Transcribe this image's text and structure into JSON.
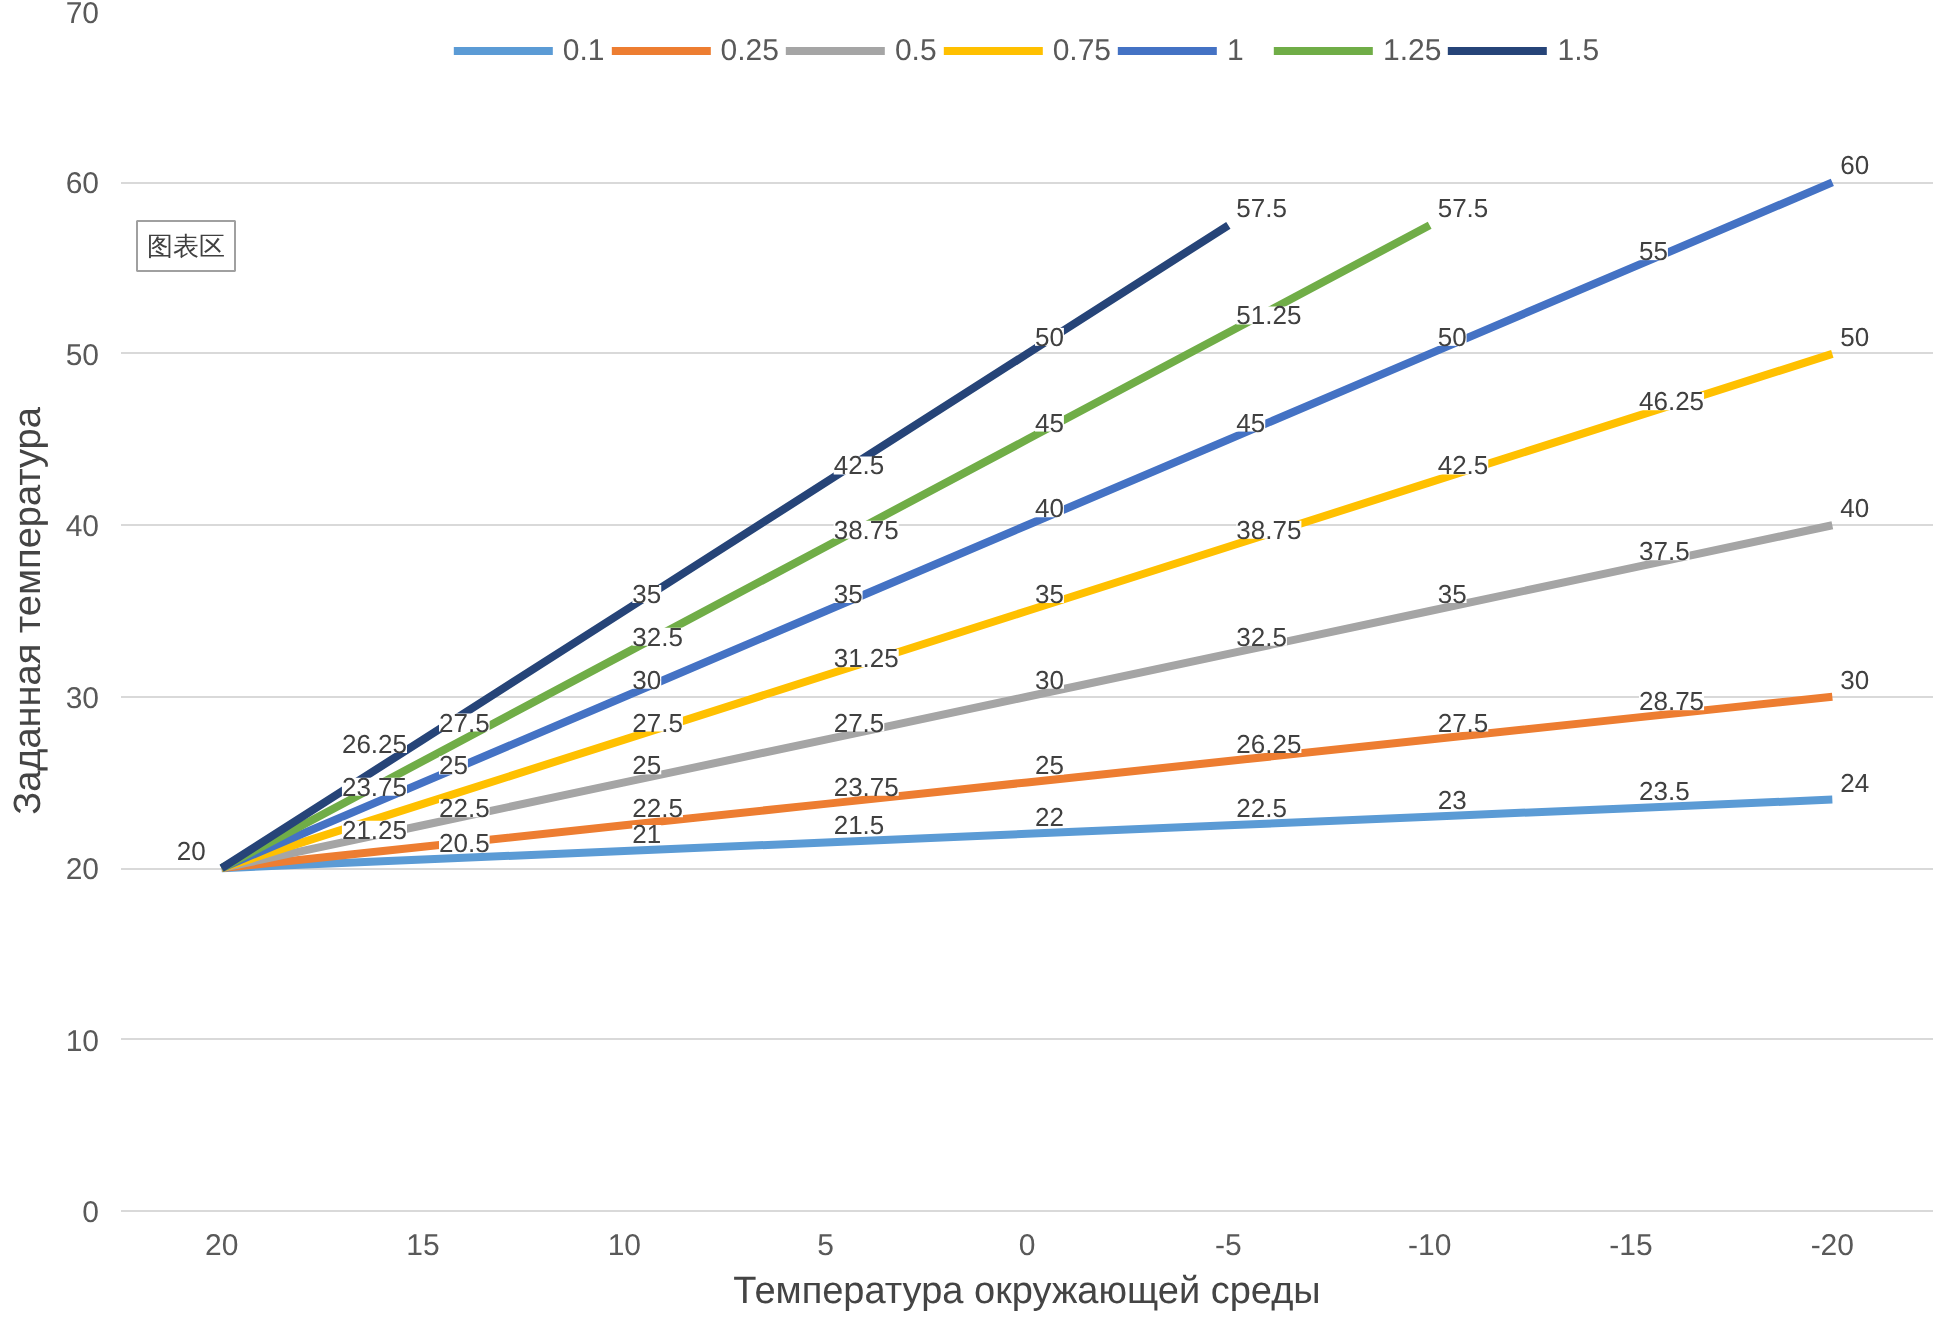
{
  "chart_data": {
    "type": "line",
    "xlabel": "Температура окружающей среды",
    "ylabel": "Заданная температура",
    "categories": [
      "20",
      "15",
      "10",
      "5",
      "0",
      "-5",
      "-10",
      "-15",
      "-20"
    ],
    "series": [
      {
        "name": "0.1",
        "color": "#5b9bd5",
        "values": [
          20,
          20.5,
          21,
          21.5,
          22,
          22.5,
          23,
          23.5,
          24
        ],
        "value_labels": [
          "20",
          "20.5",
          "21",
          "21.5",
          "22",
          "22.5",
          "23",
          "23.5",
          "24"
        ]
      },
      {
        "name": "0.25",
        "color": "#ed7d31",
        "values": [
          20,
          21.25,
          22.5,
          23.75,
          25,
          26.25,
          27.5,
          28.75,
          30
        ],
        "value_labels": [
          null,
          "21.25",
          "22.5",
          "23.75",
          "25",
          "26.25",
          "27.5",
          "28.75",
          "30"
        ]
      },
      {
        "name": "0.5",
        "color": "#a5a5a5",
        "values": [
          20,
          22.5,
          25,
          27.5,
          30,
          32.5,
          35,
          37.5,
          40
        ],
        "value_labels": [
          null,
          "22.5",
          "25",
          "27.5",
          "30",
          "32.5",
          "35",
          "37.5",
          "40"
        ]
      },
      {
        "name": "0.75",
        "color": "#ffc000",
        "values": [
          20,
          23.75,
          27.5,
          31.25,
          35,
          38.75,
          42.5,
          46.25,
          50
        ],
        "value_labels": [
          null,
          "23.75",
          "27.5",
          "31.25",
          "35",
          "38.75",
          "42.5",
          "46.25",
          "50"
        ]
      },
      {
        "name": "1",
        "color": "#4472c4",
        "values": [
          20,
          25,
          30,
          35,
          40,
          45,
          50,
          55,
          60
        ],
        "value_labels": [
          null,
          "25",
          "30",
          "35",
          "40",
          "45",
          "50",
          "55",
          "60"
        ]
      },
      {
        "name": "1.25",
        "color": "#70ad47",
        "values": [
          20,
          26.25,
          32.5,
          38.75,
          45,
          51.25,
          57.5,
          null,
          null
        ],
        "value_labels": [
          null,
          "26.25",
          "32.5",
          "38.75",
          "45",
          "51.25",
          "57.5",
          null,
          null
        ]
      },
      {
        "name": "1.5",
        "color": "#264478",
        "values": [
          20,
          27.5,
          35,
          42.5,
          50,
          57.5,
          null,
          null,
          null
        ],
        "value_labels": [
          null,
          "27.5",
          "35",
          "42.5",
          "50",
          "57.5",
          null,
          null,
          null
        ]
      }
    ],
    "ylim": [
      0,
      70
    ],
    "yticks": [
      0,
      10,
      20,
      30,
      40,
      50,
      60,
      70
    ],
    "grid": "y",
    "legend": "top",
    "marker": "none",
    "line_style": "solid",
    "annotations": [
      "图表区"
    ]
  }
}
